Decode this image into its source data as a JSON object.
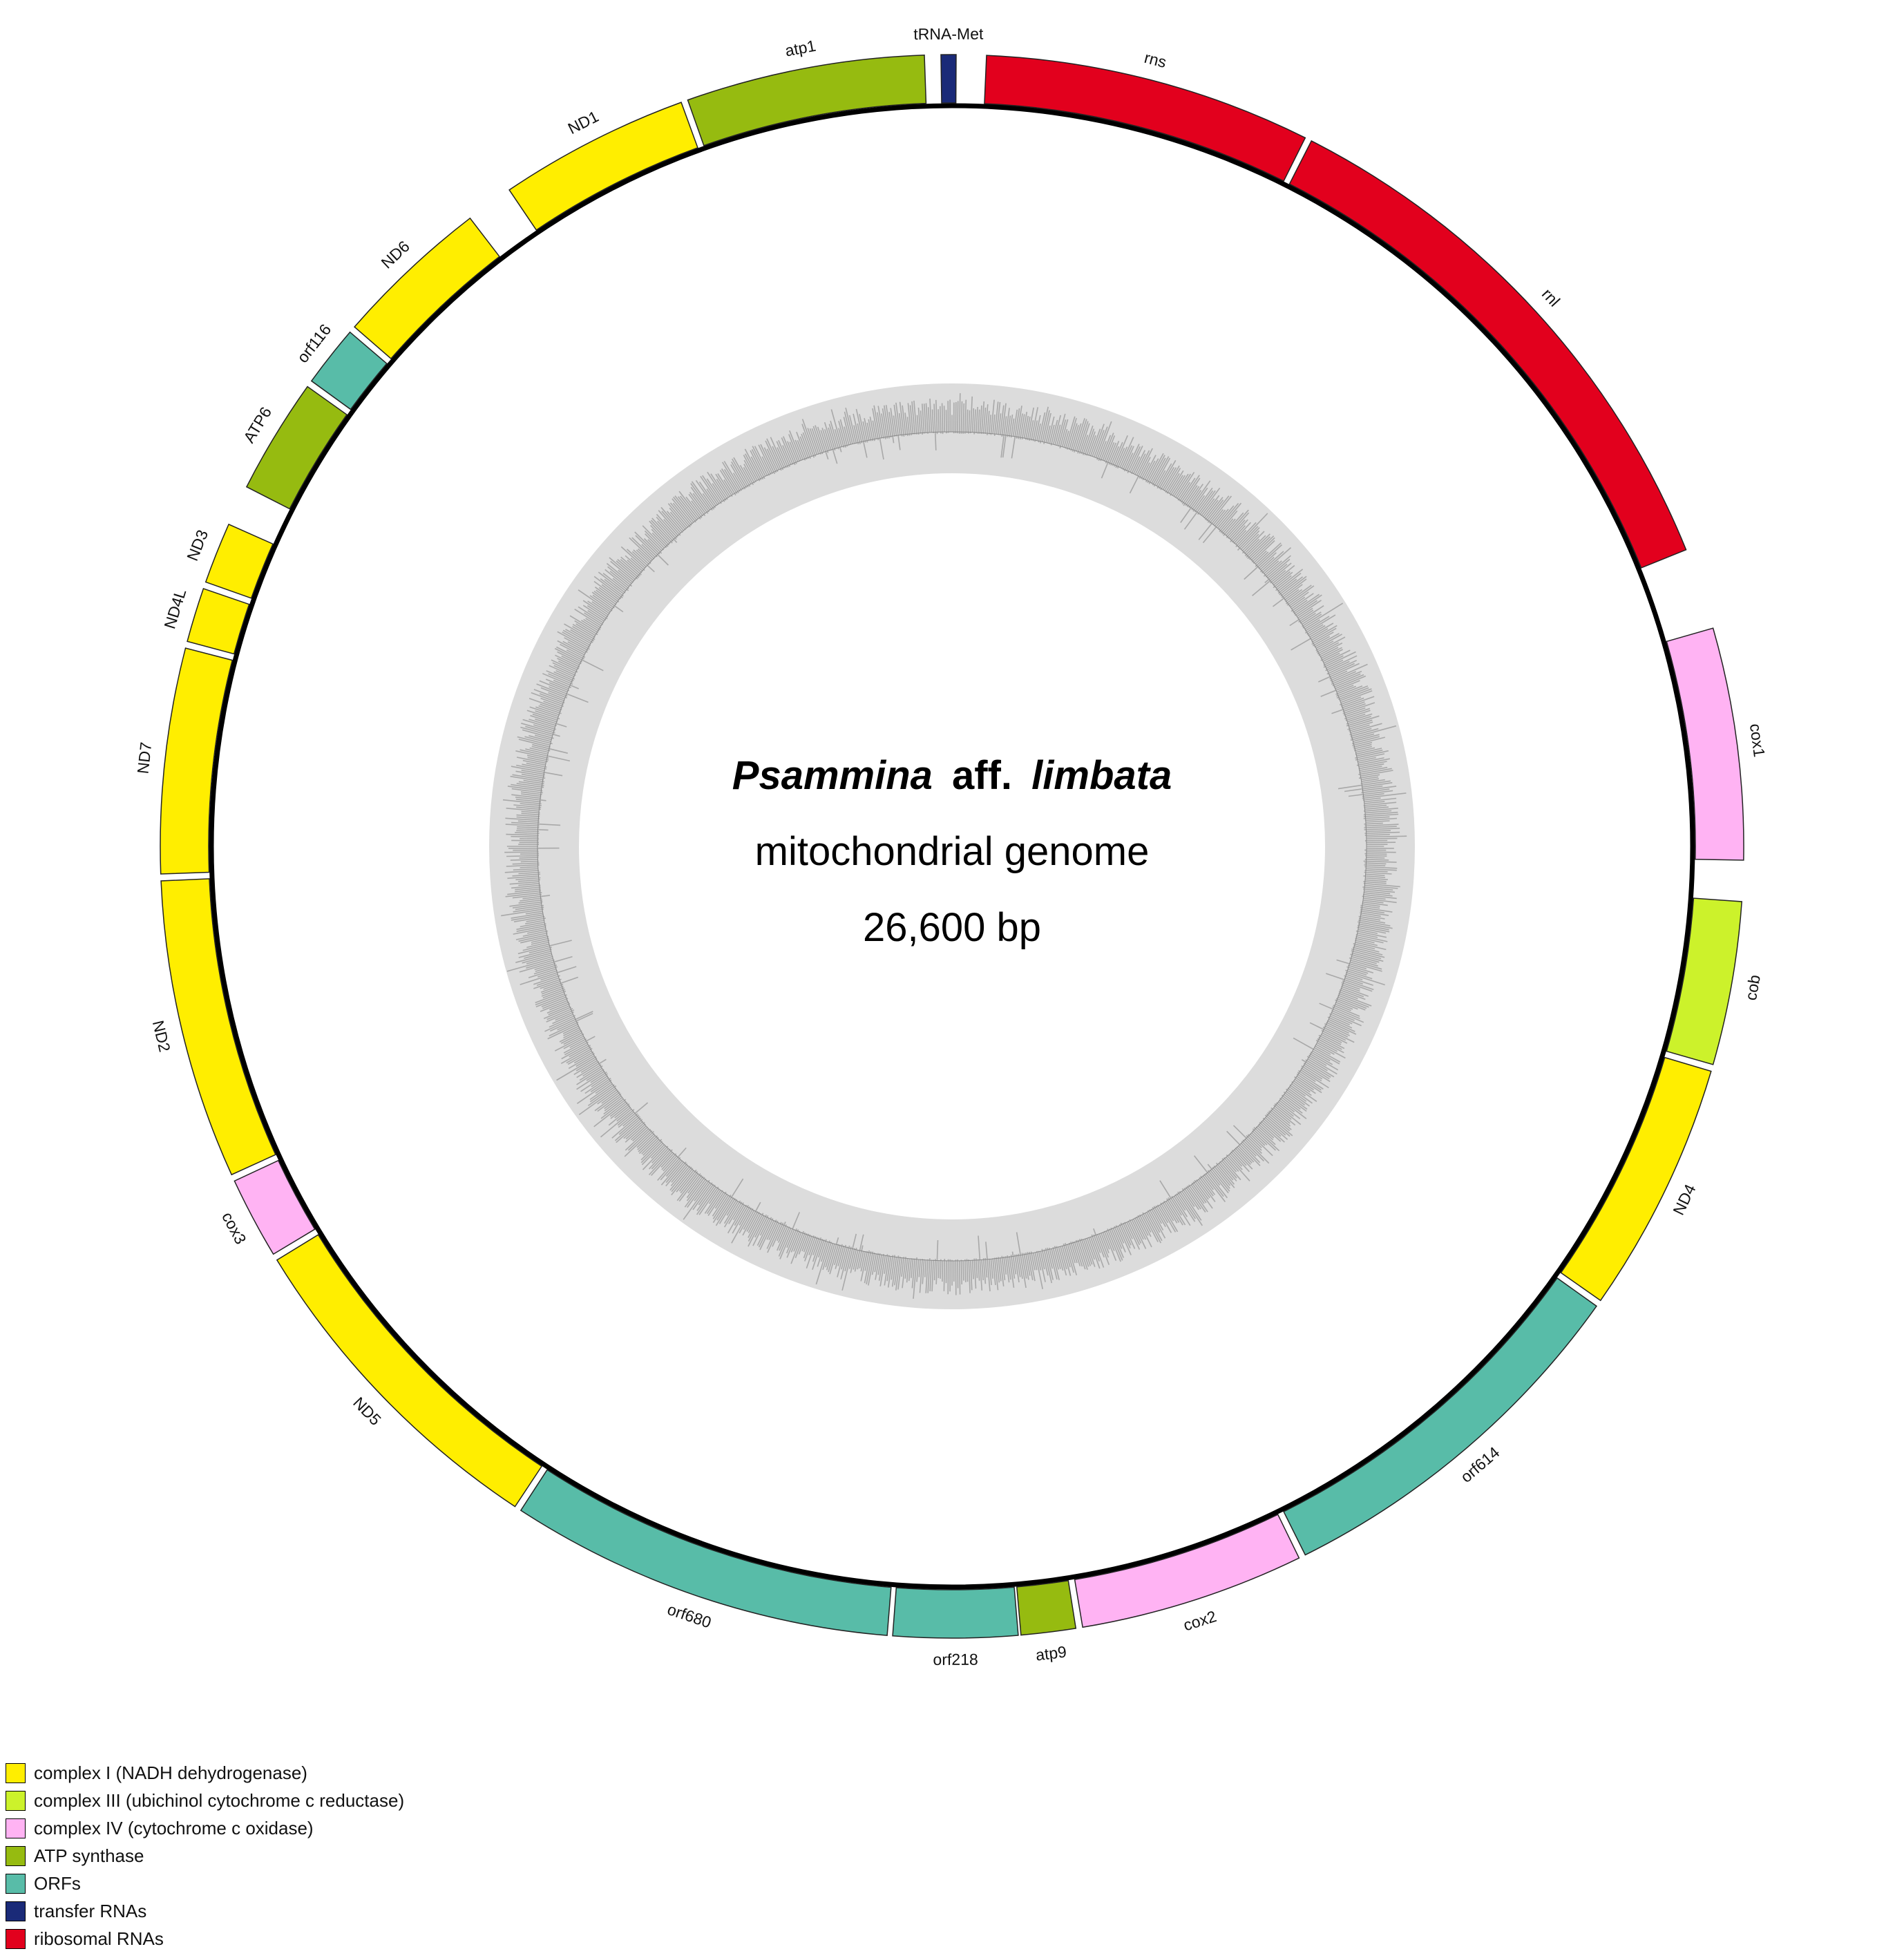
{
  "title": {
    "genus": "Psammina",
    "aff": "aff.",
    "species": "limbata",
    "subtitle": "mitochondrial genome",
    "length": "26,600 bp"
  },
  "categories": [
    {
      "id": "c1",
      "label": "complex I (NADH dehydrogenase)",
      "color": "#ffee00"
    },
    {
      "id": "c3",
      "label": "complex III (ubichinol cytochrome c reductase)",
      "color": "#ccf22b"
    },
    {
      "id": "c4",
      "label": "complex IV (cytochrome c oxidase)",
      "color": "#ffb3f3"
    },
    {
      "id": "atp",
      "label": "ATP synthase",
      "color": "#96bb10"
    },
    {
      "id": "orf",
      "label": "ORFs",
      "color": "#58bca8"
    },
    {
      "id": "trna",
      "label": "transfer RNAs",
      "color": "#1a2a78"
    },
    {
      "id": "rrna",
      "label": "ribosomal RNAs",
      "color": "#e2001d"
    }
  ],
  "genes": [
    {
      "name": "rns",
      "cat": "rrna",
      "start": 2.5,
      "end": 26.5,
      "strand": "outer"
    },
    {
      "name": "rnl",
      "cat": "rrna",
      "start": 27,
      "end": 68,
      "strand": "outer"
    },
    {
      "name": "cox1",
      "cat": "c4",
      "start": 74,
      "end": 91,
      "strand": "outer"
    },
    {
      "name": "cob",
      "cat": "c3",
      "start": 94,
      "end": 106,
      "strand": "outer"
    },
    {
      "name": "ND4",
      "cat": "c1",
      "start": 106.5,
      "end": 125,
      "strand": "outer"
    },
    {
      "name": "orf614",
      "cat": "orf",
      "start": 125.5,
      "end": 153.5,
      "strand": "outer"
    },
    {
      "name": "cox2",
      "cat": "c4",
      "start": 154,
      "end": 170.5,
      "strand": "outer"
    },
    {
      "name": "atp9",
      "cat": "atp",
      "start": 171,
      "end": 175,
      "strand": "outer"
    },
    {
      "name": "orf218",
      "cat": "orf",
      "start": 175.2,
      "end": 184.3,
      "strand": "outer"
    },
    {
      "name": "orf680",
      "cat": "orf",
      "start": 184.7,
      "end": 213,
      "strand": "outer"
    },
    {
      "name": "ND5",
      "cat": "c1",
      "start": 213.5,
      "end": 238.5,
      "strand": "outer"
    },
    {
      "name": "cox3",
      "cat": "c4",
      "start": 239,
      "end": 245,
      "strand": "outer"
    },
    {
      "name": "ND2",
      "cat": "c1",
      "start": 245.5,
      "end": 267.5,
      "strand": "outer"
    },
    {
      "name": "ND7",
      "cat": "c1",
      "start": 268,
      "end": 284.5,
      "strand": "outer"
    },
    {
      "name": "ND4L",
      "cat": "c1",
      "start": 285,
      "end": 289,
      "strand": "outer"
    },
    {
      "name": "ND3",
      "cat": "c1",
      "start": 289.5,
      "end": 294,
      "strand": "outer"
    },
    {
      "name": "ATP6",
      "cat": "atp",
      "start": 297,
      "end": 305.5,
      "strand": "outer"
    },
    {
      "name": "orf116",
      "cat": "orf",
      "start": 306,
      "end": 310.5,
      "strand": "outer"
    },
    {
      "name": "ND6",
      "cat": "c1",
      "start": 311,
      "end": 322.5,
      "strand": "outer"
    },
    {
      "name": "ND1",
      "cat": "c1",
      "start": 326,
      "end": 340,
      "strand": "outer"
    },
    {
      "name": "atp1",
      "cat": "atp",
      "start": 340.5,
      "end": 358,
      "strand": "outer"
    },
    {
      "name": "tRNA-Met",
      "cat": "trna",
      "start": 359.2,
      "end": 360.3,
      "strand": "outer"
    }
  ]
}
